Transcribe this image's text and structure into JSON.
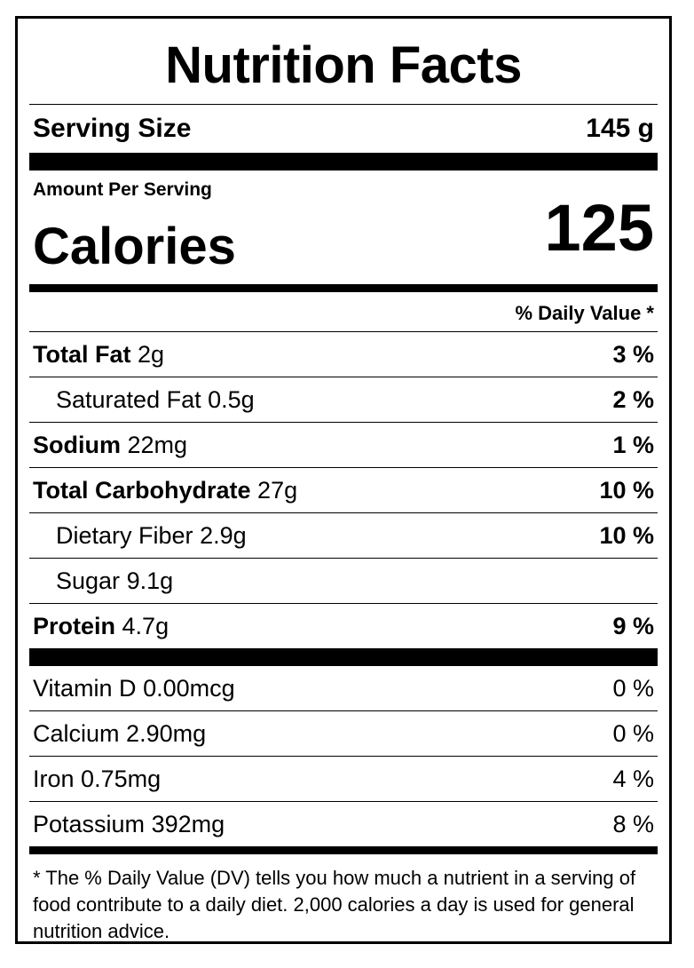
{
  "title": "Nutrition Facts",
  "serving": {
    "label": "Serving Size",
    "value": "145 g"
  },
  "amount_per_serving": "Amount Per Serving",
  "calories": {
    "label": "Calories",
    "value": "125"
  },
  "dv_header": "% Daily Value *",
  "nutrients": [
    {
      "name": "Total Fat",
      "amount": "2g",
      "dv": "3 %"
    },
    {
      "name": "Saturated Fat",
      "amount": "0.5g",
      "dv": "2 %"
    },
    {
      "name": "Sodium",
      "amount": "22mg",
      "dv": "1 %"
    },
    {
      "name": "Total Carbohydrate",
      "amount": "27g",
      "dv": "10 %"
    },
    {
      "name": "Dietary Fiber",
      "amount": "2.9g",
      "dv": "10 %"
    },
    {
      "name": "Sugar",
      "amount": "9.1g",
      "dv": ""
    },
    {
      "name": "Protein",
      "amount": "4.7g",
      "dv": "9 %"
    }
  ],
  "vitamins": [
    {
      "name": "Vitamin D",
      "amount": "0.00mcg",
      "dv": "0 %"
    },
    {
      "name": "Calcium",
      "amount": "2.90mg",
      "dv": "0 %"
    },
    {
      "name": "Iron",
      "amount": "0.75mg",
      "dv": "4 %"
    },
    {
      "name": "Potassium",
      "amount": "392mg",
      "dv": "8 %"
    }
  ],
  "footnote": "* The % Daily Value (DV) tells you how much a nutrient in a serving of food contribute to a daily diet. 2,000 calories a day is used for general nutrition advice."
}
